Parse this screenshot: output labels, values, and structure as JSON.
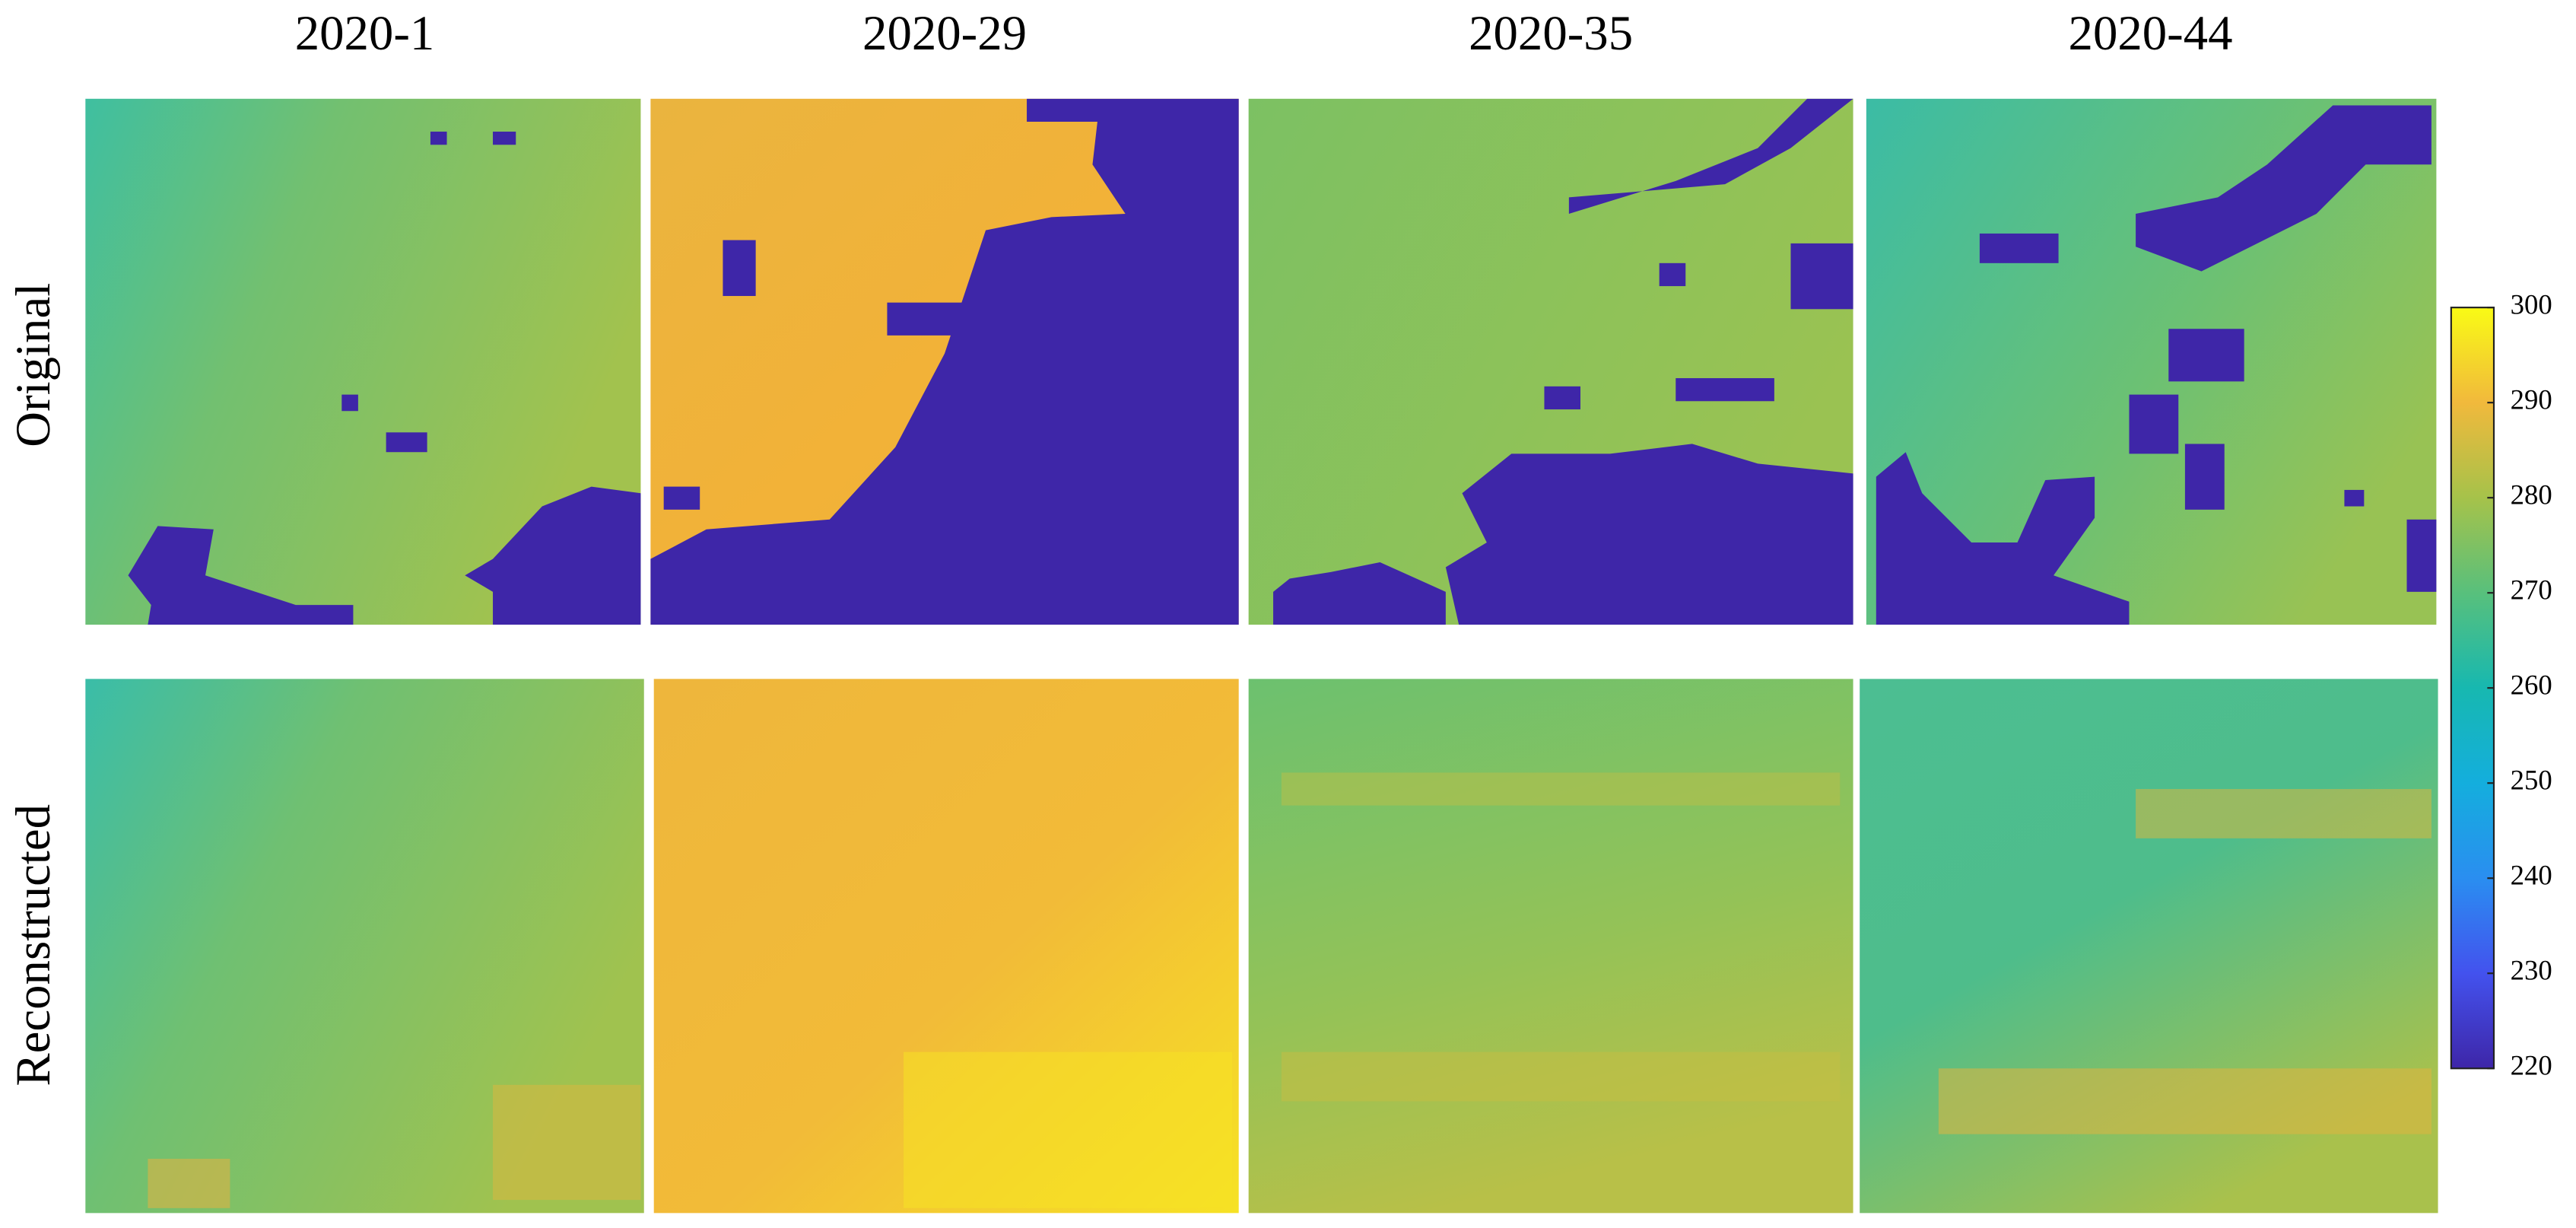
{
  "chart_data": {
    "type": "heatmap-grid",
    "columns": [
      "2020-1",
      "2020-29",
      "2020-35",
      "2020-44"
    ],
    "rows": [
      "Original",
      "Reconstructed"
    ],
    "colormap": [
      "#3e26a8",
      "#4352ee",
      "#2a8ef0",
      "#14aedd",
      "#17b8b0",
      "#58c07c",
      "#a6c24a",
      "#f1b93c",
      "#f9fb15"
    ],
    "clim": [
      220,
      300
    ],
    "cticks": [
      220,
      230,
      240,
      250,
      260,
      270,
      280,
      290,
      300
    ]
  }
}
